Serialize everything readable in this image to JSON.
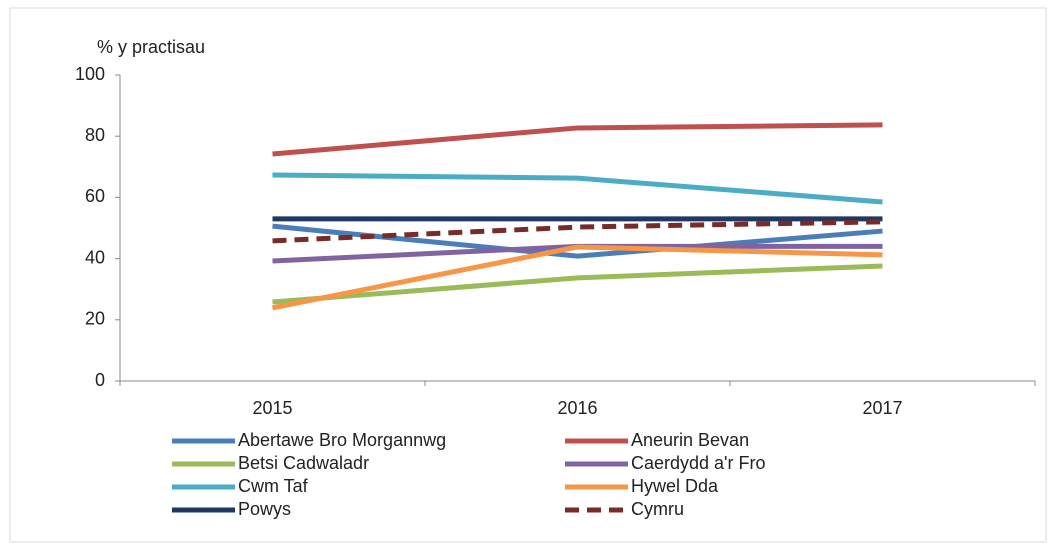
{
  "chart_data": {
    "type": "line",
    "y_label": "% y practisau",
    "categories": [
      "2015",
      "2016",
      "2017"
    ],
    "ylim": [
      0,
      100
    ],
    "yticks": [
      0,
      20,
      40,
      60,
      80,
      100
    ],
    "series": [
      {
        "name": "Abertawe Bro Morgannwg",
        "color": "#4a7ebb",
        "values": [
          50.6,
          40.8,
          49
        ]
      },
      {
        "name": "Aneurin Bevan",
        "color": "#c0504d",
        "values": [
          74.2,
          82.7,
          83.7
        ]
      },
      {
        "name": "Betsi Cadwaladr",
        "color": "#9bbb59",
        "values": [
          25.8,
          33.7,
          37.6
        ]
      },
      {
        "name": "Caerdydd a'r Fro",
        "color": "#8064a2",
        "values": [
          39.2,
          44,
          44
        ]
      },
      {
        "name": "Cwm Taf",
        "color": "#4bacc6",
        "values": [
          67.3,
          66.3,
          58.5
        ]
      },
      {
        "name": "Hywel Dda",
        "color": "#f79646",
        "values": [
          23.9,
          43.8,
          41.2
        ]
      },
      {
        "name": "Powys",
        "color": "#1f3864",
        "values": [
          53,
          53,
          53
        ]
      },
      {
        "name": "Cymru",
        "color": "#772c2a",
        "dashed": true,
        "values": [
          45.8,
          50.3,
          52
        ]
      }
    ]
  }
}
